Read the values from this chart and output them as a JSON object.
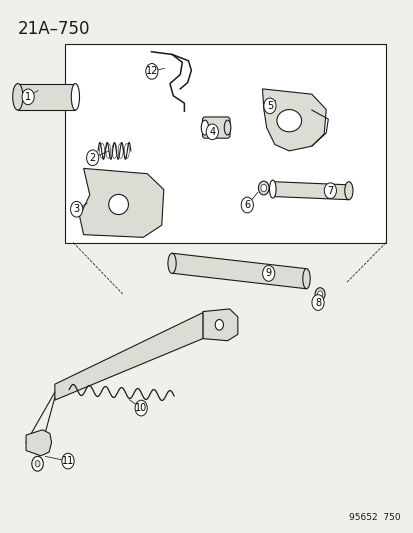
{
  "title": "21A–750",
  "footer": "95652  750",
  "bg_color": "#f0f0eb",
  "line_color": "#1a1a1a",
  "fill_color": "#dcdcd4",
  "fig_width": 4.14,
  "fig_height": 5.33,
  "dpi": 100,
  "title_fontsize": 12,
  "callout_fontsize": 7,
  "footer_fontsize": 6.5
}
